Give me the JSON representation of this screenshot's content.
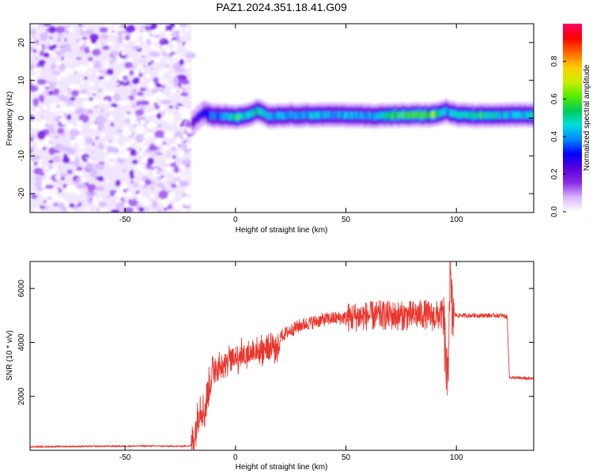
{
  "chart_data": [
    {
      "type": "heatmap",
      "title": "PAZ1.2024.351.18.41.G09",
      "xlabel": "Height of straight line (km)",
      "ylabel": "Frequency (Hz)",
      "xlim": [
        -93,
        135
      ],
      "ylim": [
        -25,
        25
      ],
      "xticks": [
        -50,
        0,
        50,
        100
      ],
      "yticks": [
        -20,
        -10,
        0,
        10,
        20
      ],
      "colorbar": {
        "label": "Normalized spectral amplitude",
        "ticks": [
          "0.0",
          "0.2",
          "0.4",
          "0.6",
          "0.8"
        ],
        "range": [
          0,
          1
        ],
        "colormap": [
          "#ffffff",
          "#d8b4ff",
          "#8a2be2",
          "#5a00dd",
          "#0000ff",
          "#0088ff",
          "#00dddd",
          "#00cc55",
          "#55ee00",
          "#ccee00",
          "#ffcc00",
          "#ff6600",
          "#ff0000",
          "#ff0066"
        ]
      },
      "noise_region": {
        "x": [
          -93,
          -20
        ],
        "frequency": [
          -25,
          25
        ],
        "amplitude": "low"
      },
      "signal_track": {
        "x": [
          -20,
          -15,
          -10,
          -5,
          0,
          5,
          10,
          15,
          20,
          30,
          40,
          50,
          60,
          70,
          80,
          90,
          95,
          100,
          110,
          120,
          135
        ],
        "frequency": [
          -1.5,
          1.5,
          0.5,
          0.5,
          0.3,
          0.8,
          2.0,
          0.5,
          0.7,
          0.8,
          0.8,
          0.8,
          0.6,
          0.7,
          0.8,
          0.9,
          1.8,
          0.9,
          0.6,
          0.8,
          0.8
        ],
        "peak_amplitude": [
          0.25,
          0.35,
          0.45,
          0.5,
          0.7,
          0.55,
          0.6,
          0.55,
          0.5,
          0.5,
          0.5,
          0.5,
          0.5,
          0.7,
          0.7,
          0.75,
          0.5,
          0.6,
          0.65,
          0.55,
          0.6
        ]
      }
    },
    {
      "type": "line",
      "title": "",
      "xlabel": "Height of straight line (km)",
      "ylabel": "SNR (10 * v/v)",
      "xlim": [
        -93,
        135
      ],
      "ylim": [
        0,
        7000
      ],
      "xticks": [
        -50,
        0,
        50,
        100
      ],
      "yticks": [
        2000,
        4000,
        6000
      ],
      "line_color": "#e8372e",
      "series": [
        {
          "x": [
            -93,
            -80,
            -60,
            -40,
            -25,
            -20,
            -18,
            -16,
            -14,
            -12,
            -10,
            -8,
            -5,
            0,
            5,
            8,
            10,
            15,
            20,
            25,
            30,
            35,
            40,
            45,
            50,
            55,
            60,
            65,
            70,
            75,
            80,
            85,
            90,
            94,
            96,
            97,
            98,
            100,
            110,
            120,
            123,
            124,
            135
          ],
          "y": [
            130,
            140,
            150,
            160,
            150,
            170,
            800,
            1700,
            1400,
            2400,
            3000,
            3300,
            3500,
            3700,
            3800,
            3900,
            4000,
            4050,
            4200,
            4450,
            4650,
            4750,
            4850,
            4900,
            4920,
            4950,
            4980,
            5000,
            5000,
            4980,
            5000,
            5050,
            4950,
            5050,
            2200,
            6500,
            5100,
            5000,
            5000,
            5000,
            4950,
            2700,
            2650
          ]
        }
      ]
    }
  ]
}
